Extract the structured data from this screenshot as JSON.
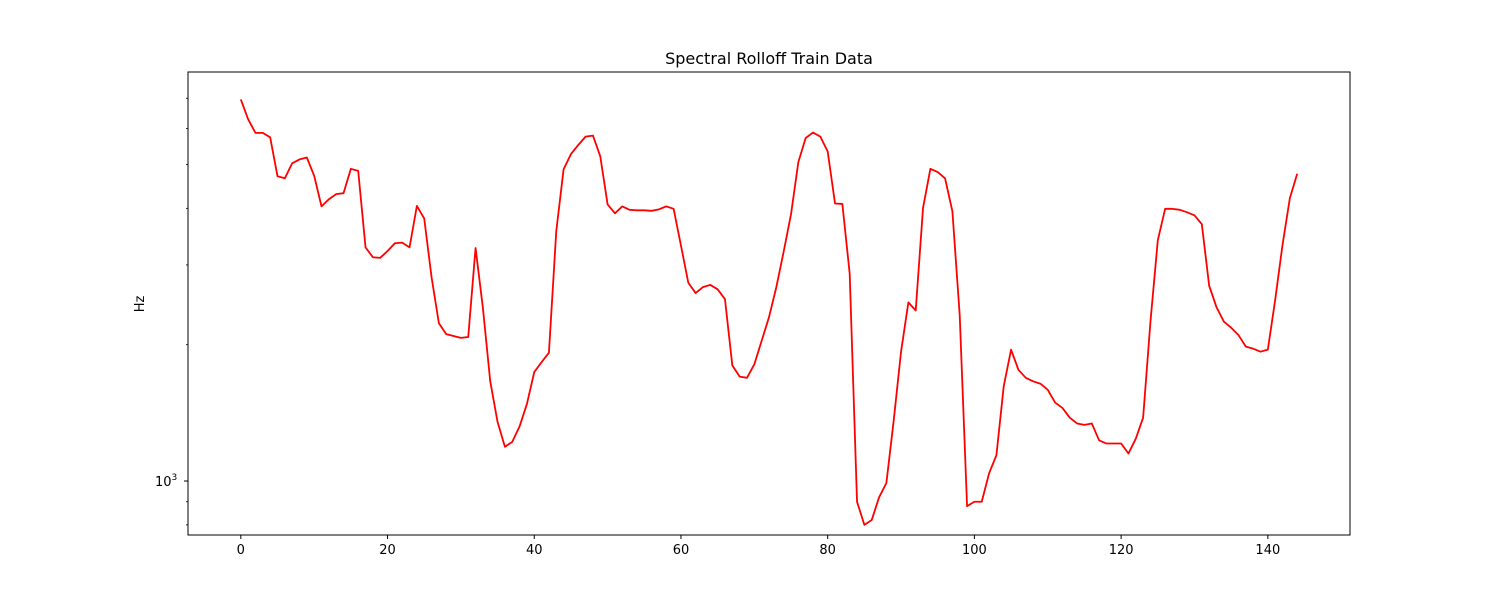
{
  "chart_data": {
    "type": "line",
    "title": "Spectral Rolloff Train Data",
    "xlabel": "",
    "ylabel": "Hz",
    "xlim": [
      -7.2,
      151.2
    ],
    "ylim": [
      760,
      8000
    ],
    "yscale": "log",
    "grid": false,
    "legend": "none",
    "x_ticks": [
      0,
      20,
      40,
      60,
      80,
      100,
      120,
      140
    ],
    "x_tick_labels": [
      "0",
      "20",
      "40",
      "60",
      "80",
      "100",
      "120",
      "140"
    ],
    "y_major_ticks": [
      1000
    ],
    "y_major_tick_labels": [
      "10",
      "3"
    ],
    "y_minor_ticks": [
      800,
      900,
      2000,
      3000,
      4000,
      5000,
      6000,
      7000
    ],
    "series": [
      {
        "color": "#ff0000",
        "x": [
          0,
          1,
          2,
          3,
          4,
          5,
          6,
          7,
          8,
          9,
          10,
          11,
          12,
          13,
          14,
          15,
          16,
          17,
          18,
          19,
          20,
          21,
          22,
          23,
          24,
          25,
          26,
          27,
          28,
          29,
          30,
          31,
          32,
          33,
          34,
          35,
          36,
          37,
          38,
          39,
          40,
          41,
          42,
          43,
          44,
          45,
          46,
          47,
          48,
          49,
          50,
          51,
          52,
          53,
          54,
          55,
          56,
          57,
          58,
          59,
          60,
          61,
          62,
          63,
          64,
          65,
          66,
          67,
          68,
          69,
          70,
          71,
          72,
          73,
          74,
          75,
          76,
          77,
          78,
          79,
          80,
          81,
          82,
          83,
          84,
          85,
          86,
          87,
          88,
          89,
          90,
          91,
          92,
          93,
          94,
          95,
          96,
          97,
          98,
          99,
          100,
          101,
          102,
          103,
          104,
          105,
          106,
          107,
          108,
          109,
          110,
          111,
          112,
          113,
          114,
          115,
          116,
          117,
          118,
          119,
          120,
          121,
          122,
          123,
          124,
          125,
          126,
          127,
          128,
          129,
          130,
          131,
          132,
          133,
          134,
          135,
          136,
          137,
          138,
          139,
          140,
          141,
          142,
          143,
          144
        ],
        "values": [
          6960,
          6290,
          5870,
          5870,
          5740,
          4710,
          4660,
          5030,
          5130,
          5180,
          4720,
          4040,
          4190,
          4300,
          4320,
          4890,
          4840,
          3280,
          3120,
          3110,
          3220,
          3350,
          3360,
          3280,
          4050,
          3800,
          2820,
          2230,
          2110,
          2090,
          2070,
          2080,
          3270,
          2410,
          1660,
          1350,
          1190,
          1220,
          1320,
          1480,
          1740,
          1830,
          1920,
          3560,
          4880,
          5270,
          5520,
          5760,
          5790,
          5210,
          4080,
          3900,
          4040,
          3970,
          3960,
          3960,
          3950,
          3980,
          4040,
          3990,
          3310,
          2740,
          2600,
          2680,
          2710,
          2650,
          2520,
          1800,
          1700,
          1690,
          1810,
          2040,
          2300,
          2680,
          3210,
          3880,
          5060,
          5720,
          5880,
          5760,
          5340,
          4100,
          4090,
          2870,
          900,
          800,
          820,
          920,
          990,
          1360,
          1930,
          2480,
          2380,
          4010,
          4890,
          4810,
          4660,
          3940,
          2320,
          880,
          900,
          900,
          1040,
          1140,
          1620,
          1950,
          1760,
          1690,
          1660,
          1640,
          1590,
          1490,
          1450,
          1380,
          1340,
          1330,
          1340,
          1230,
          1210,
          1210,
          1210,
          1150,
          1240,
          1380,
          2250,
          3400,
          3990,
          3990,
          3970,
          3920,
          3860,
          3690,
          2700,
          2420,
          2250,
          2180,
          2100,
          1980,
          1960,
          1930,
          1950,
          2510,
          3320,
          4210,
          4770
        ]
      }
    ]
  }
}
